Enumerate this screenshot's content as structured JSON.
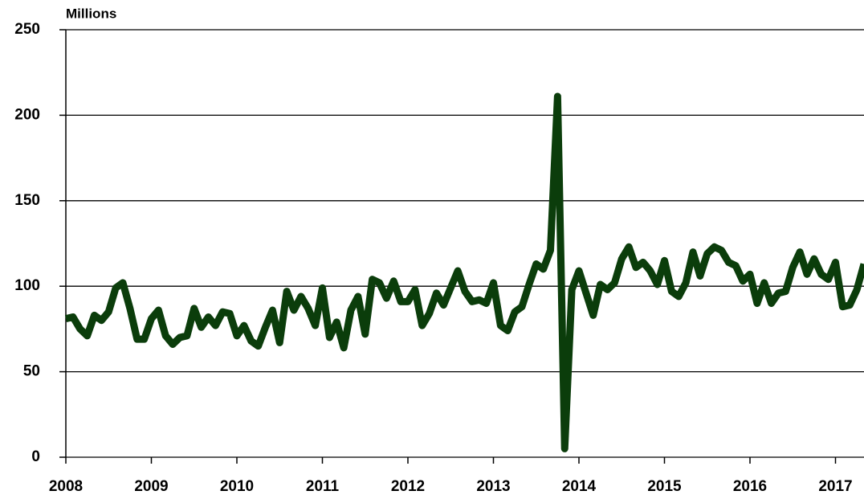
{
  "chart_data": {
    "type": "line",
    "ylabel": "Millions",
    "categories": [
      "2008",
      null,
      null,
      null,
      null,
      null,
      null,
      null,
      null,
      null,
      null,
      null,
      "2009",
      null,
      null,
      null,
      null,
      null,
      null,
      null,
      null,
      null,
      null,
      null,
      "2010",
      null,
      null,
      null,
      null,
      null,
      null,
      null,
      null,
      null,
      null,
      null,
      "2011",
      null,
      null,
      null,
      null,
      null,
      null,
      null,
      null,
      null,
      null,
      null,
      "2012",
      null,
      null,
      null,
      null,
      null,
      null,
      null,
      null,
      null,
      null,
      null,
      "2013",
      null,
      null,
      null,
      null,
      null,
      null,
      null,
      null,
      null,
      null,
      null,
      "2014",
      null,
      null,
      null,
      null,
      null,
      null,
      null,
      null,
      null,
      null,
      null,
      "2015",
      null,
      null,
      null,
      null,
      null,
      null,
      null,
      null,
      null,
      null,
      null,
      "2016",
      null,
      null,
      null,
      null,
      null,
      null,
      null,
      null,
      null,
      null,
      null,
      "2017",
      null,
      null,
      null,
      null
    ],
    "series": [
      {
        "color": "#0b3d0b",
        "values": [
          81,
          82,
          75,
          71,
          83,
          80,
          85,
          99,
          102,
          87,
          69,
          69,
          81,
          86,
          71,
          66,
          70,
          71,
          87,
          76,
          82,
          77,
          85,
          84,
          71,
          77,
          68,
          65,
          76,
          86,
          67,
          97,
          86,
          94,
          87,
          77,
          99,
          70,
          79,
          64,
          86,
          94,
          72,
          104,
          102,
          93,
          103,
          91,
          91,
          98,
          77,
          84,
          96,
          89,
          99,
          109,
          97,
          91,
          92,
          90,
          102,
          77,
          74,
          85,
          88,
          101,
          113,
          110,
          121,
          211,
          5,
          98,
          109,
          96,
          83,
          101,
          98,
          102,
          116,
          123,
          111,
          114,
          109,
          101,
          115,
          97,
          94,
          102,
          120,
          106,
          119,
          123,
          121,
          114,
          112,
          103,
          107,
          90,
          102,
          90,
          96,
          97,
          111,
          120,
          107,
          116,
          107,
          104,
          114,
          88,
          89,
          98,
          113
        ]
      }
    ],
    "ylim": [
      0,
      250
    ],
    "yticks": [
      0,
      50,
      100,
      150,
      200,
      250
    ],
    "grid": true
  }
}
